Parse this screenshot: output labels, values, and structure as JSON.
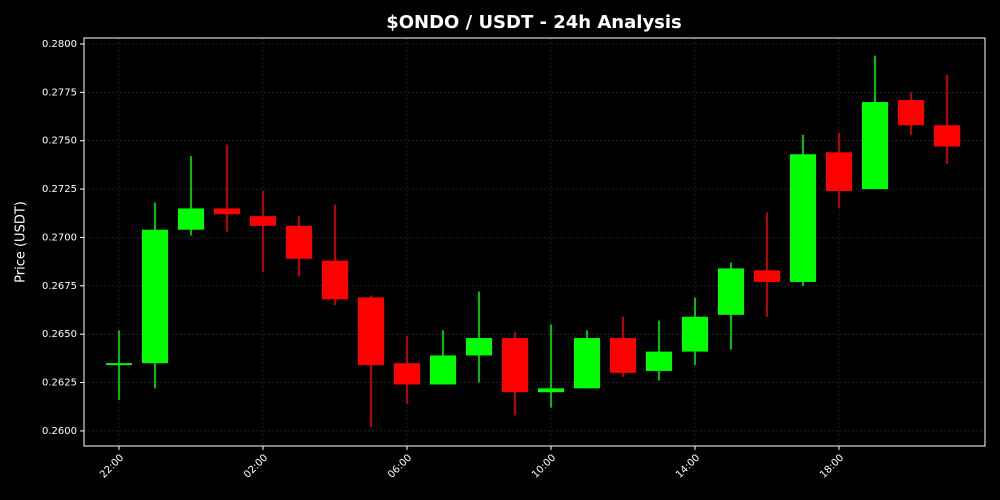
{
  "chart_data": {
    "type": "candlestick",
    "title": "$ONDO / USDT - 24h Analysis",
    "y_label": "Price (USDT)",
    "categories": [
      "22:00",
      null,
      null,
      null,
      "02:00",
      null,
      null,
      null,
      "06:00",
      null,
      null,
      null,
      "10:00",
      null,
      null,
      null,
      "14:00",
      null,
      null,
      null,
      "18:00",
      null,
      null,
      null
    ],
    "open": [
      0.2634,
      0.2635,
      0.2704,
      0.2715,
      0.2711,
      0.2706,
      0.2688,
      0.2669,
      0.2635,
      0.2624,
      0.2639,
      0.2648,
      0.262,
      0.2622,
      0.2648,
      0.2631,
      0.2641,
      0.266,
      0.2683,
      0.2677,
      0.2744,
      0.2725,
      0.2771,
      0.2758
    ],
    "high": [
      0.2652,
      0.2718,
      0.2742,
      0.2748,
      0.2724,
      0.2711,
      0.2717,
      0.267,
      0.2649,
      0.2652,
      0.2672,
      0.2651,
      0.2655,
      0.2652,
      0.2659,
      0.2657,
      0.2669,
      0.2687,
      0.2713,
      0.2753,
      0.2754,
      0.2794,
      0.2775,
      0.2784
    ],
    "low": [
      0.2616,
      0.2622,
      0.2701,
      0.2703,
      0.2682,
      0.268,
      0.2665,
      0.2602,
      0.2614,
      0.2624,
      0.2625,
      0.2608,
      0.2612,
      0.2622,
      0.2628,
      0.2626,
      0.2634,
      0.2642,
      0.2659,
      0.2675,
      0.2715,
      0.2725,
      0.2753,
      0.2738
    ],
    "close": [
      0.2635,
      0.2704,
      0.2715,
      0.2712,
      0.2706,
      0.2689,
      0.2668,
      0.2634,
      0.2624,
      0.2639,
      0.2648,
      0.262,
      0.2622,
      0.2648,
      0.263,
      0.2641,
      0.2659,
      0.2684,
      0.2677,
      0.2743,
      0.2724,
      0.277,
      0.2758,
      0.2747
    ],
    "up_color": "#00ff00",
    "down_color": "#ff0000",
    "ylim": [
      0.25922,
      0.28031
    ],
    "yticks": [
      {
        "value": 0.26,
        "label": "0.2600"
      },
      {
        "value": 0.2625,
        "label": "0.2625"
      },
      {
        "value": 0.265,
        "label": "0.2650"
      },
      {
        "value": 0.2675,
        "label": "0.2675"
      },
      {
        "value": 0.27,
        "label": "0.2700"
      },
      {
        "value": 0.2725,
        "label": "0.2725"
      },
      {
        "value": 0.275,
        "label": "0.2750"
      },
      {
        "value": 0.2775,
        "label": "0.2775"
      },
      {
        "value": 0.28,
        "label": "0.2800"
      }
    ],
    "grid": true
  }
}
